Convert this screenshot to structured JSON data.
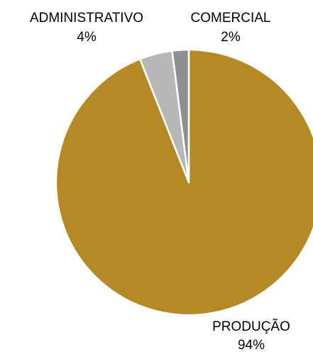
{
  "chart_data": {
    "type": "pie",
    "title": "",
    "start_angle_deg": 0,
    "direction": "clockwise",
    "slices": [
      {
        "name": "PRODUÇÃO",
        "value": 94,
        "label": "94%",
        "color": "#b58a26"
      },
      {
        "name": "ADMINISTRATIVO",
        "value": 4,
        "label": "4%",
        "color": "#b7b7b7"
      },
      {
        "name": "COMERCIAL",
        "value": 2,
        "label": "2%",
        "color": "#8f8f8f"
      }
    ],
    "slice_border_color": "#ffffff",
    "legend": "none",
    "data_labels": "outside"
  }
}
